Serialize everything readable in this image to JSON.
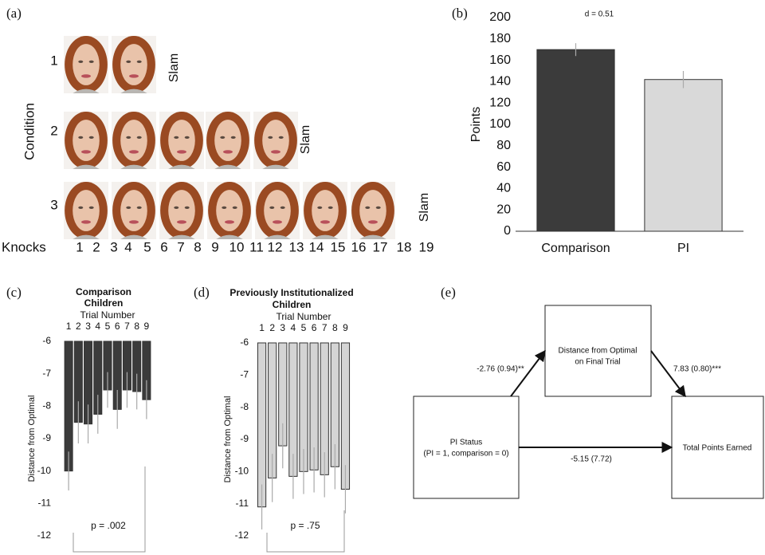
{
  "panel_a": {
    "label": "(a)",
    "y_label": "Condition",
    "rows": [
      {
        "label": "1",
        "end": "Slam"
      },
      {
        "label": "2",
        "end": "Slam"
      },
      {
        "label": "3",
        "end": "Slam"
      }
    ],
    "x_label": "Knocks",
    "knocks": [
      1,
      2,
      3,
      4,
      5,
      6,
      7,
      8,
      9,
      10,
      11,
      12,
      13,
      14,
      15,
      16,
      17,
      18,
      19
    ]
  },
  "chart_data": [
    {
      "type": "bar",
      "panel_label": "(b)",
      "annotation": "d = 0.51",
      "ylabel": "Points",
      "categories": [
        "Comparison",
        "PI"
      ],
      "values": [
        170,
        142
      ],
      "errors": [
        6,
        8
      ],
      "colors": [
        "#3b3b3b",
        "#d9d9d9"
      ],
      "ylim": [
        0,
        200
      ],
      "yticks": [
        0,
        20,
        40,
        60,
        80,
        100,
        120,
        140,
        160,
        180,
        200
      ]
    },
    {
      "type": "bar",
      "panel_label": "(c)",
      "title": [
        "Comparison",
        "Children"
      ],
      "xlabel": "Trial Number",
      "ylabel": "Distance from Optimal",
      "annotation": "p = .002",
      "categories": [
        "1",
        "2",
        "3",
        "4",
        "5",
        "6",
        "7",
        "8",
        "9"
      ],
      "values": [
        -10.0,
        -8.5,
        -8.55,
        -8.25,
        -7.5,
        -8.1,
        -7.5,
        -7.55,
        -7.8
      ],
      "errors": [
        0.6,
        0.65,
        0.6,
        0.6,
        0.55,
        0.6,
        0.55,
        0.55,
        0.6
      ],
      "color": "#3b3b3b",
      "ylim": [
        -12,
        -6
      ],
      "yticks": [
        -12,
        -11,
        -10,
        -9,
        -8,
        -7,
        -6
      ]
    },
    {
      "type": "bar",
      "panel_label": "(d)",
      "title": [
        "Previously Institutionalized",
        "Children"
      ],
      "xlabel": "Trial Number",
      "ylabel": "Distance from Optimal",
      "annotation": "p = .75",
      "categories": [
        "1",
        "2",
        "3",
        "4",
        "5",
        "6",
        "7",
        "8",
        "9"
      ],
      "values": [
        -11.1,
        -10.2,
        -9.2,
        -10.15,
        -10.0,
        -9.95,
        -10.1,
        -9.85,
        -10.55
      ],
      "errors": [
        0.7,
        0.75,
        0.7,
        0.7,
        0.7,
        0.7,
        0.7,
        0.7,
        0.75
      ],
      "color": "#d4d4d4",
      "ylim": [
        -12,
        -6
      ],
      "yticks": [
        -12,
        -11,
        -10,
        -9,
        -8,
        -7,
        -6
      ]
    }
  ],
  "diagram": {
    "label": "(e)",
    "nodes": [
      {
        "lines": [
          "PI Status",
          "(PI = 1, comparison = 0)"
        ]
      },
      {
        "lines": [
          "Distance from Optimal",
          "on Final Trial"
        ]
      },
      {
        "lines": [
          "Total Points Earned"
        ]
      }
    ],
    "edges": [
      {
        "label": "-2.76 (0.94)**"
      },
      {
        "label": "7.83 (0.80)***"
      },
      {
        "label": "-5.15 (7.72)"
      }
    ]
  }
}
